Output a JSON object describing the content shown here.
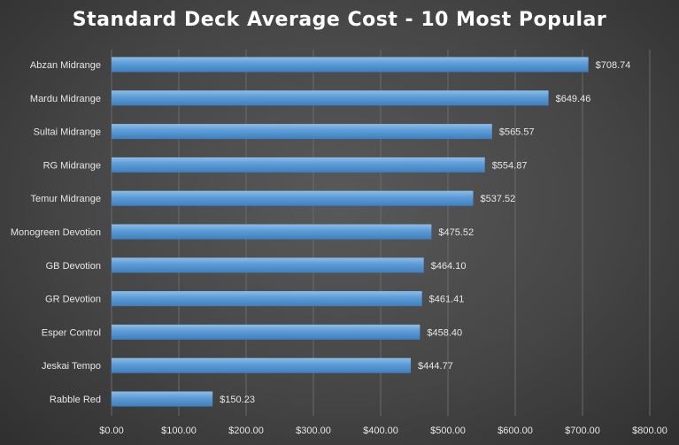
{
  "chart_data": {
    "type": "bar",
    "orientation": "horizontal",
    "title": "Standard Deck Average Cost - 10 Most Popular",
    "categories": [
      "Abzan Midrange",
      "Mardu Midrange",
      "Sultai Midrange",
      "RG Midrange",
      "Temur Midrange",
      "Monogreen Devotion",
      "GB Devotion",
      "GR Devotion",
      "Esper Control",
      "Jeskai Tempo",
      "Rabble Red"
    ],
    "values": [
      708.74,
      649.46,
      565.57,
      554.87,
      537.52,
      475.52,
      464.1,
      461.41,
      458.4,
      444.77,
      150.23
    ],
    "data_labels": [
      "$708.74",
      "$649.46",
      "$565.57",
      "$554.87",
      "$537.52",
      "$475.52",
      "$464.10",
      "$461.41",
      "$458.40",
      "$444.77",
      "$150.23"
    ],
    "x_ticks": [
      0,
      100,
      200,
      300,
      400,
      500,
      600,
      700,
      800
    ],
    "x_tick_labels": [
      "$0.00",
      "$100.00",
      "$200.00",
      "$300.00",
      "$400.00",
      "$500.00",
      "$600.00",
      "$700.00",
      "$800.00"
    ],
    "xlim": [
      0,
      800
    ],
    "grid": true,
    "legend": "none",
    "colors": {
      "bar": "#5b9bd5",
      "bar_light": "#8cbde8",
      "bar_dark": "#3f7fc0",
      "gridline": "#6a6a6a",
      "text": "#e6e6e6"
    }
  }
}
